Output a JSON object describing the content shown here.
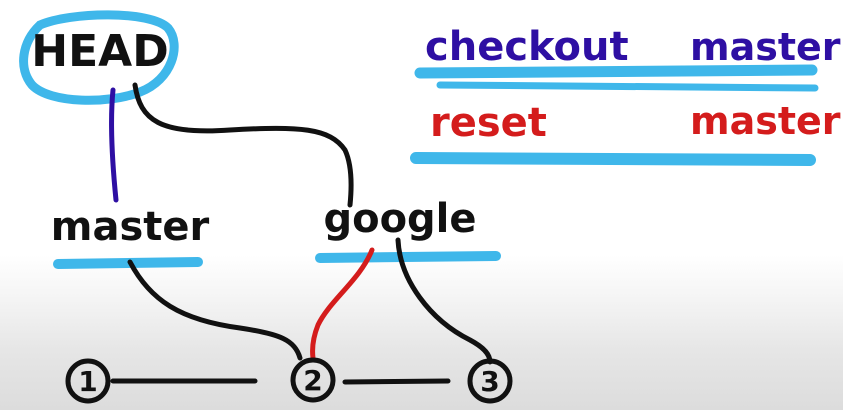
{
  "nodes": {
    "head": "HEAD",
    "master": "master",
    "google": "google",
    "commit_1": "1",
    "commit_2": "2",
    "commit_3": "3"
  },
  "commands": {
    "checkout": {
      "verb": "checkout",
      "target": "master"
    },
    "reset": {
      "verb": "reset",
      "target": "master"
    }
  },
  "colors": {
    "ink": "#111111",
    "highlight_blue": "#3fb7ea",
    "checkout_purple": "#2e0fa3",
    "reset_red": "#d41c1c"
  }
}
